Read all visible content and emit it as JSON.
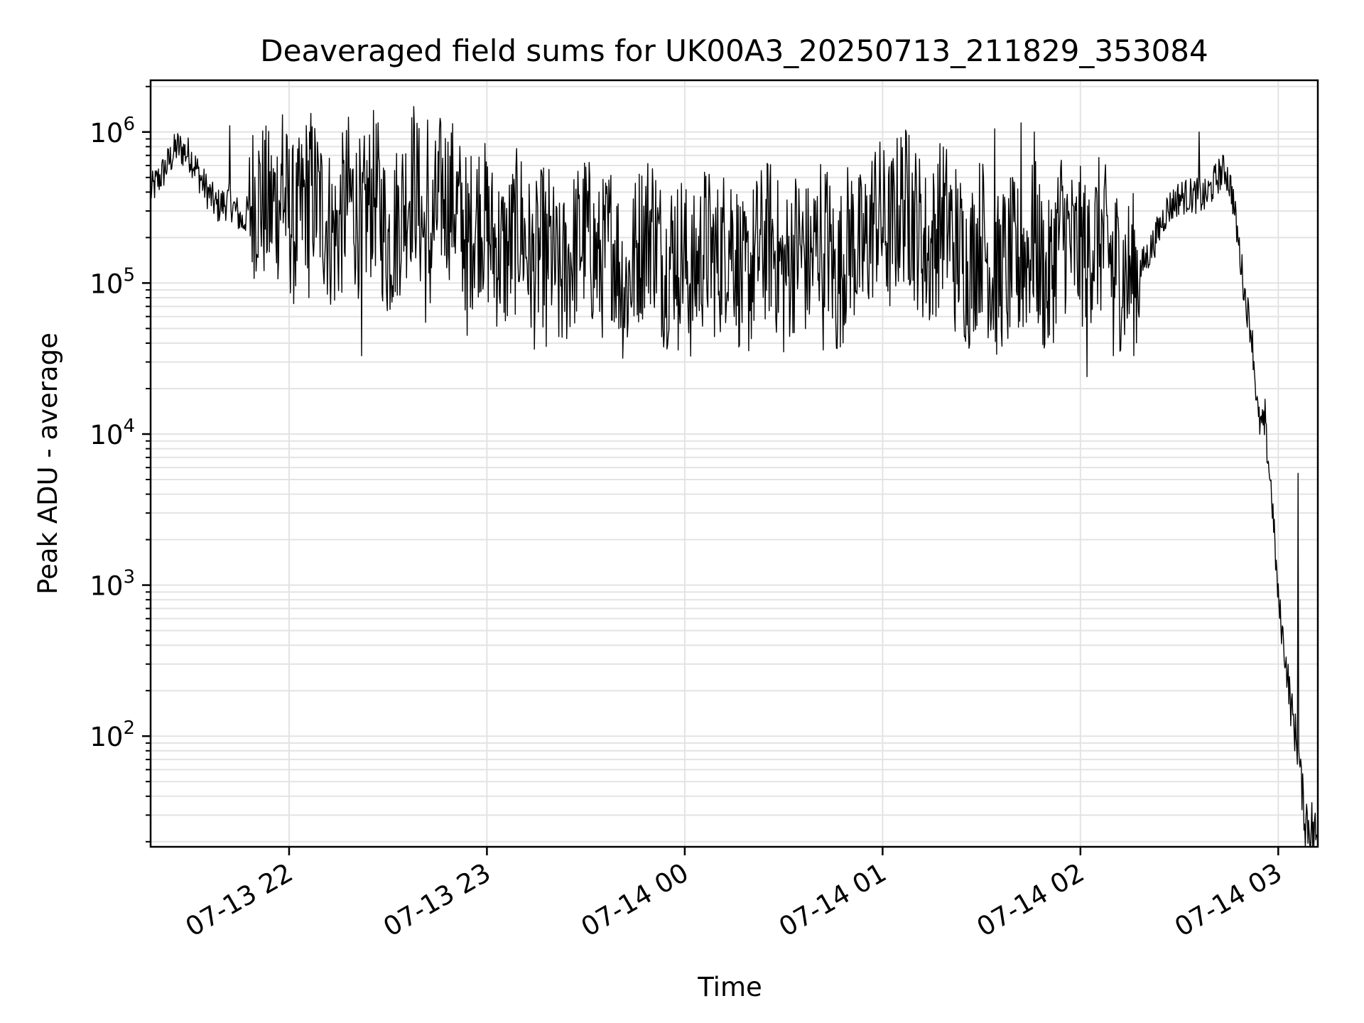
{
  "chart_data": {
    "type": "line",
    "title": "Deaveraged field sums for UK00A3_20250713_211829_353084",
    "xlabel": "Time",
    "ylabel": "Peak ADU - average",
    "y_scale": "log",
    "grid": true,
    "line_color": "#000000",
    "x_range": [
      "07-13 21:18",
      "07-14 03:12"
    ],
    "ylim": [
      18.5,
      2200000
    ],
    "x_ticks": [
      {
        "at": "07-13 22:00",
        "label": "07-13 22"
      },
      {
        "at": "07-13 23:00",
        "label": "07-13 23"
      },
      {
        "at": "07-14 00:00",
        "label": "07-14 00"
      },
      {
        "at": "07-14 01:00",
        "label": "07-14 01"
      },
      {
        "at": "07-14 02:00",
        "label": "07-14 02"
      },
      {
        "at": "07-14 03:00",
        "label": "07-14 03"
      }
    ],
    "y_ticks": [
      {
        "value": 100,
        "base": "10",
        "exp": "2"
      },
      {
        "value": 1000,
        "base": "10",
        "exp": "3"
      },
      {
        "value": 10000,
        "base": "10",
        "exp": "4"
      },
      {
        "value": 100000,
        "base": "10",
        "exp": "5"
      },
      {
        "value": 1000000,
        "base": "10",
        "exp": "6"
      }
    ],
    "series": [
      {
        "x": [
          "07-13 21:18",
          "07-13 21:22",
          "07-13 21:26",
          "07-13 21:30",
          "07-13 21:34",
          "07-13 21:38",
          "07-13 21:42",
          "07-13 21:46",
          "07-13 21:50",
          "07-13 21:54",
          "07-13 21:58",
          "07-13 22:02",
          "07-13 22:06",
          "07-13 22:10",
          "07-13 22:14",
          "07-13 22:18",
          "07-13 22:22",
          "07-13 22:26",
          "07-13 22:30",
          "07-13 22:34",
          "07-13 22:38",
          "07-13 22:42",
          "07-13 22:46",
          "07-13 22:50",
          "07-13 22:54",
          "07-13 22:58",
          "07-13 23:02",
          "07-13 23:06",
          "07-13 23:10",
          "07-13 23:14",
          "07-13 23:18",
          "07-13 23:22",
          "07-13 23:26",
          "07-13 23:30",
          "07-13 23:34",
          "07-13 23:38",
          "07-13 23:42",
          "07-13 23:46",
          "07-13 23:50",
          "07-13 23:54",
          "07-13 23:58",
          "07-14 00:02",
          "07-14 00:06",
          "07-14 00:10",
          "07-14 00:14",
          "07-14 00:18",
          "07-14 00:22",
          "07-14 00:26",
          "07-14 00:30",
          "07-14 00:34",
          "07-14 00:38",
          "07-14 00:42",
          "07-14 00:46",
          "07-14 00:50",
          "07-14 00:54",
          "07-14 00:58",
          "07-14 01:02",
          "07-14 01:06",
          "07-14 01:10",
          "07-14 01:14",
          "07-14 01:18",
          "07-14 01:22",
          "07-14 01:26",
          "07-14 01:30",
          "07-14 01:34",
          "07-14 01:38",
          "07-14 01:42",
          "07-14 01:46",
          "07-14 01:50",
          "07-14 01:54",
          "07-14 01:58",
          "07-14 02:02",
          "07-14 02:06",
          "07-14 02:10",
          "07-14 02:14",
          "07-14 02:18",
          "07-14 02:22",
          "07-14 02:26",
          "07-14 02:30",
          "07-14 02:34",
          "07-14 02:38",
          "07-14 02:42",
          "07-14 02:44",
          "07-14 02:46",
          "07-14 02:48",
          "07-14 02:50",
          "07-14 02:52",
          "07-14 02:54",
          "07-14 02:56",
          "07-14 02:58",
          "07-14 03:00",
          "07-14 03:02",
          "07-14 03:04",
          "07-14 03:06",
          "07-14 03:08",
          "07-14 03:10",
          "07-14 03:12"
        ],
        "y": [
          400000,
          550000,
          800000,
          700000,
          450000,
          320000,
          350000,
          250000,
          400000,
          300000,
          380000,
          220000,
          450000,
          300000,
          200000,
          380000,
          250000,
          420000,
          180000,
          300000,
          500000,
          150000,
          400000,
          350000,
          200000,
          300000,
          180000,
          150000,
          250000,
          120000,
          200000,
          100000,
          160000,
          220000,
          130000,
          200000,
          90000,
          180000,
          250000,
          120000,
          200000,
          100000,
          180000,
          140000,
          220000,
          90000,
          160000,
          200000,
          110000,
          180000,
          130000,
          250000,
          100000,
          200000,
          150000,
          300000,
          200000,
          350000,
          250000,
          150000,
          280000,
          200000,
          120000,
          220000,
          100000,
          150000,
          130000,
          200000,
          90000,
          250000,
          160000,
          180000,
          200000,
          140000,
          110000,
          120000,
          180000,
          300000,
          370000,
          380000,
          370000,
          520000,
          560000,
          400000,
          180000,
          80000,
          45000,
          12000,
          11000,
          4000,
          800,
          350,
          150,
          80,
          30,
          25,
          20
        ],
        "spikes_high": [
          [
            "07-13 21:42",
            1100000
          ],
          [
            "07-13 21:58",
            1300000
          ],
          [
            "07-13 22:42",
            1200000
          ],
          [
            "07-13 22:46",
            1150000
          ],
          [
            "07-14 01:08",
            950000
          ],
          [
            "07-14 01:34",
            1050000
          ],
          [
            "07-14 01:42",
            1150000
          ],
          [
            "07-14 01:46",
            1000000
          ],
          [
            "07-14 02:36",
            1000000
          ]
        ],
        "spikes_low": [
          [
            "07-13 21:50",
            120000
          ],
          [
            "07-13 22:06",
            80000
          ],
          [
            "07-13 22:22",
            33000
          ],
          [
            "07-13 22:54",
            45000
          ],
          [
            "07-13 23:18",
            38000
          ],
          [
            "07-13 23:58",
            36000
          ],
          [
            "07-14 00:30",
            35000
          ],
          [
            "07-14 00:42",
            36000
          ],
          [
            "07-14 01:22",
            48000
          ],
          [
            "07-14 01:38",
            43000
          ],
          [
            "07-14 02:02",
            24000
          ],
          [
            "07-14 02:10",
            33000
          ],
          [
            "07-14 02:56",
            17000
          ],
          [
            "07-14 03:06",
            5500
          ]
        ]
      }
    ]
  }
}
